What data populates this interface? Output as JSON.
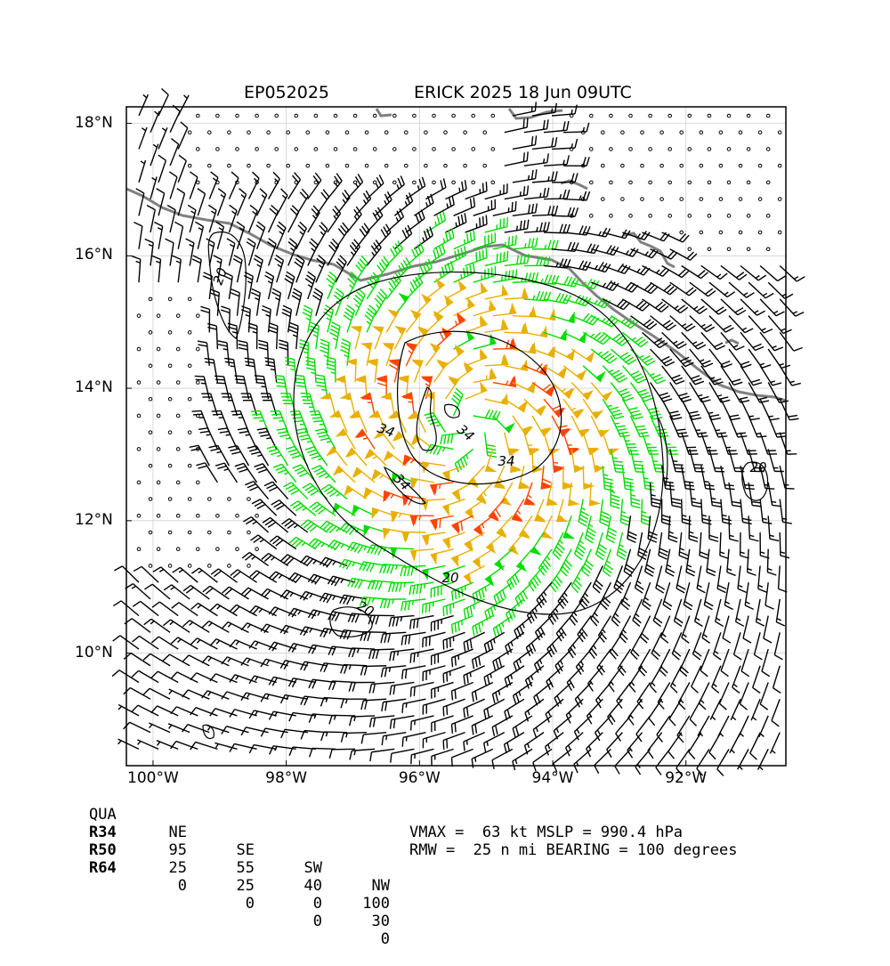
{
  "header": {
    "storm_id": "EP052025",
    "storm_title": "ERICK 2025 18 Jun 09UTC"
  },
  "map": {
    "extent": {
      "lon_min": -100.4,
      "lon_max": -90.5,
      "lat_min": 8.3,
      "lat_max": 18.25
    },
    "lat_ticks": [
      {
        "value": 18,
        "label": "18°N"
      },
      {
        "value": 16,
        "label": "16°N"
      },
      {
        "value": 14,
        "label": "14°N"
      },
      {
        "value": 12,
        "label": "12°N"
      },
      {
        "value": 10,
        "label": "10°N"
      }
    ],
    "lon_ticks": [
      {
        "value": -100,
        "label": "100°W"
      },
      {
        "value": -98,
        "label": "98°W"
      },
      {
        "value": -96,
        "label": "96°W"
      },
      {
        "value": -94,
        "label": "94°W"
      },
      {
        "value": -92,
        "label": "92°W"
      }
    ],
    "center": {
      "lon": -95.3,
      "lat": 13.4
    },
    "contour_labels": [
      "34",
      "34",
      "34",
      "34",
      "20",
      "20",
      "20",
      "20"
    ],
    "colors": {
      "calm": "#000000",
      "below34": "#000000",
      "r34": "#00dd00",
      "r50": "#e8b000",
      "r64": "#ff4400",
      "coast": "#808080",
      "grid": "#d0d0d0"
    }
  },
  "radii_table": {
    "header": [
      "QUA",
      "NE",
      "SE",
      "SW",
      "NW"
    ],
    "rows": [
      {
        "name": "R34",
        "values": [
          "95",
          "55",
          "40",
          "100"
        ]
      },
      {
        "name": "R50",
        "values": [
          "25",
          "25",
          "0",
          "30"
        ]
      },
      {
        "name": "R64",
        "values": [
          "0",
          "0",
          "0",
          "0"
        ]
      }
    ]
  },
  "stats": {
    "line1": "VMAX =  63 kt MSLP = 990.4 hPa",
    "line2": "RMW =  25 n mi BEARING = 100 degrees"
  }
}
